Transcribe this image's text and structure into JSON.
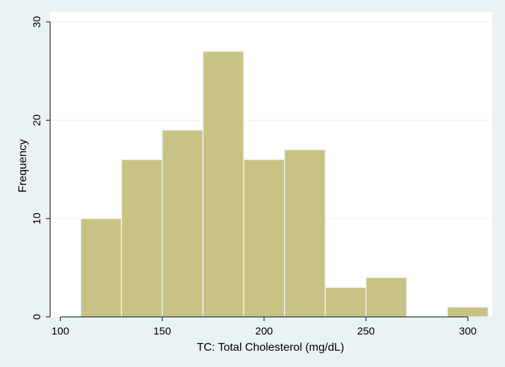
{
  "chart_data": {
    "type": "bar",
    "bins": [
      {
        "start": 110,
        "end": 130,
        "value": 10
      },
      {
        "start": 130,
        "end": 150,
        "value": 16
      },
      {
        "start": 150,
        "end": 170,
        "value": 19
      },
      {
        "start": 170,
        "end": 190,
        "value": 27
      },
      {
        "start": 190,
        "end": 210,
        "value": 16
      },
      {
        "start": 210,
        "end": 230,
        "value": 17
      },
      {
        "start": 230,
        "end": 250,
        "value": 3
      },
      {
        "start": 250,
        "end": 270,
        "value": 4
      },
      {
        "start": 270,
        "end": 290,
        "value": 0
      },
      {
        "start": 290,
        "end": 310,
        "value": 1
      }
    ],
    "xlabel": "TC: Total Cholesterol (mg/dL)",
    "ylabel": "Frequency",
    "xticks": [
      100,
      150,
      200,
      250,
      300
    ],
    "yticks": [
      0,
      10,
      20,
      30
    ],
    "xlim": [
      95,
      312
    ],
    "ylim": [
      0,
      30
    ],
    "grid": true,
    "colors": {
      "bar_fill": "#c8c382",
      "bar_edge": "#eaf2f3",
      "background": "#eaf2f3",
      "plot_background": "#ffffff",
      "grid": "#eaf2f3"
    }
  }
}
